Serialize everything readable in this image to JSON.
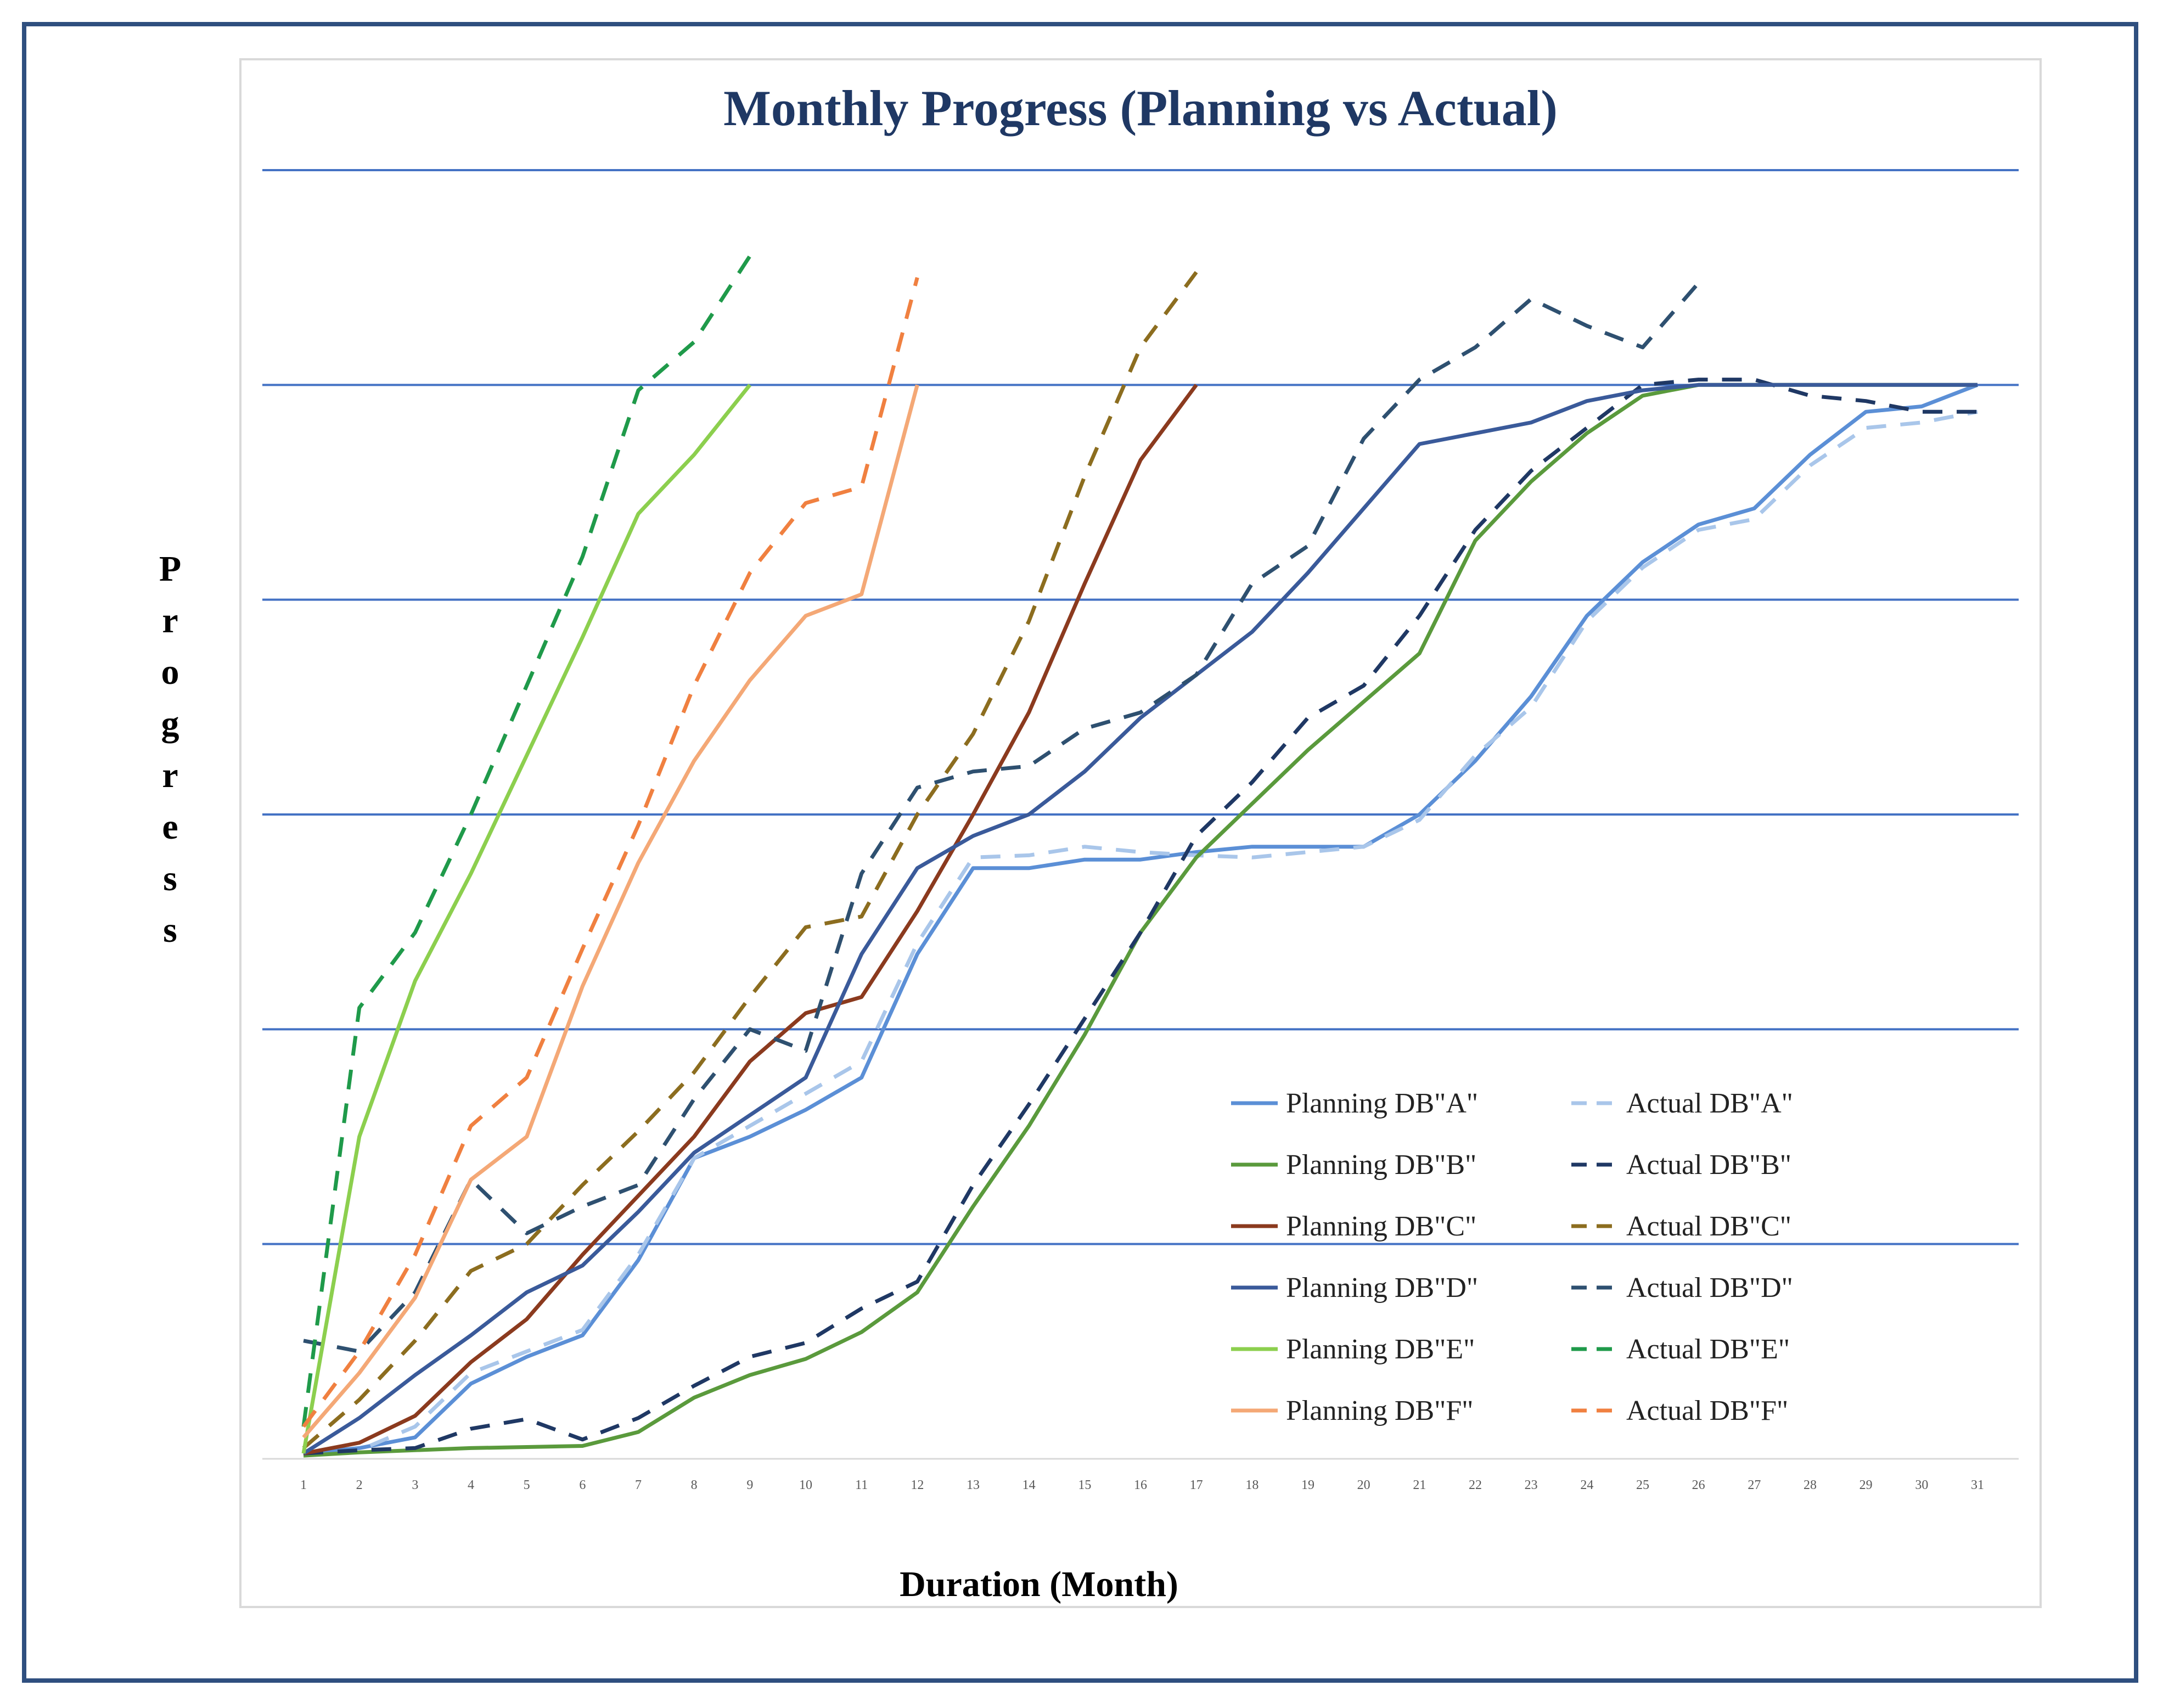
{
  "chart_data": {
    "type": "line",
    "title": "Monthly Progress (Planning vs Actual)",
    "xlabel": "Duration (Month)",
    "ylabel": "Progress",
    "xlim": [
      1,
      31
    ],
    "ylim": [
      0,
      1.2
    ],
    "gridlines_y": [
      0.2,
      0.4,
      0.6,
      0.8,
      1.0,
      1.2
    ],
    "grid": true,
    "legend_position": "bottom-right",
    "x_ticks": [
      "1",
      "2",
      "3",
      "4",
      "5",
      "6",
      "7",
      "8",
      "9",
      "10",
      "11",
      "12",
      "13",
      "14",
      "15",
      "16",
      "17",
      "18",
      "19",
      "20",
      "21",
      "22",
      "23",
      "24",
      "25",
      "26",
      "27",
      "28",
      "29",
      "30",
      "31"
    ],
    "series": [
      {
        "name": "Planning DB\"A\"",
        "style": "solid",
        "color": "#5b8fd6",
        "x": [
          1,
          2,
          3,
          4,
          5,
          6,
          7,
          8,
          9,
          10,
          11,
          12,
          13,
          14,
          15,
          16,
          17,
          18,
          19,
          20,
          21,
          22,
          23,
          24,
          25,
          26,
          27,
          28,
          29,
          30,
          31
        ],
        "values": [
          0.005,
          0.01,
          0.02,
          0.07,
          0.095,
          0.115,
          0.185,
          0.28,
          0.3,
          0.325,
          0.355,
          0.47,
          0.55,
          0.55,
          0.558,
          0.558,
          0.565,
          0.57,
          0.57,
          0.57,
          0.6,
          0.65,
          0.71,
          0.785,
          0.835,
          0.87,
          0.885,
          0.935,
          0.975,
          0.98,
          1.0
        ]
      },
      {
        "name": "Actual DB\"A\"",
        "style": "dashed",
        "color": "#a9c6ea",
        "x": [
          1,
          2,
          3,
          4,
          5,
          6,
          7,
          8,
          9,
          10,
          11,
          12,
          13,
          14,
          15,
          16,
          17,
          18,
          19,
          20,
          21,
          22,
          23,
          24,
          25,
          26,
          27,
          28,
          29,
          30,
          31
        ],
        "values": [
          0.003,
          0.008,
          0.03,
          0.08,
          0.1,
          0.12,
          0.19,
          0.28,
          0.31,
          0.34,
          0.37,
          0.48,
          0.56,
          0.562,
          0.57,
          0.565,
          0.562,
          0.56,
          0.565,
          0.57,
          0.595,
          0.655,
          0.7,
          0.78,
          0.83,
          0.865,
          0.875,
          0.925,
          0.96,
          0.965,
          0.975
        ]
      },
      {
        "name": "Planning DB\"B\"",
        "style": "solid",
        "color": "#5a9a3c",
        "x": [
          1,
          2,
          3,
          4,
          5,
          6,
          7,
          8,
          9,
          10,
          11,
          12,
          13,
          14,
          15,
          16,
          17,
          18,
          19,
          20,
          21,
          22,
          23,
          24,
          25,
          26,
          27,
          28,
          29,
          30,
          31
        ],
        "values": [
          0.003,
          0.006,
          0.008,
          0.01,
          0.011,
          0.012,
          0.025,
          0.057,
          0.078,
          0.093,
          0.118,
          0.155,
          0.235,
          0.31,
          0.395,
          0.49,
          0.56,
          0.61,
          0.66,
          0.705,
          0.75,
          0.855,
          0.91,
          0.955,
          0.99,
          1.0,
          1.0,
          1.0,
          1.0,
          1.0,
          1.0
        ]
      },
      {
        "name": "Actual DB\"B\"",
        "style": "dashed",
        "color": "#1f3864",
        "x": [
          1,
          2,
          3,
          4,
          5,
          6,
          7,
          8,
          9,
          10,
          11,
          12,
          13,
          14,
          15,
          16,
          17,
          18,
          19,
          20,
          21,
          22,
          23,
          24,
          25,
          26,
          27,
          28,
          29,
          30,
          31
        ],
        "values": [
          0.005,
          0.008,
          0.01,
          0.028,
          0.037,
          0.018,
          0.038,
          0.068,
          0.095,
          0.108,
          0.14,
          0.165,
          0.255,
          0.33,
          0.41,
          0.49,
          0.58,
          0.63,
          0.69,
          0.72,
          0.785,
          0.865,
          0.92,
          0.96,
          1.0,
          1.005,
          1.005,
          0.99,
          0.985,
          0.975,
          0.975
        ]
      },
      {
        "name": "Planning DB\"C\"",
        "style": "solid",
        "color": "#8b3a1e",
        "x": [
          1,
          2,
          3,
          4,
          5,
          6,
          7,
          8,
          9,
          10,
          11,
          12,
          13,
          14,
          15,
          16,
          17
        ],
        "values": [
          0.005,
          0.015,
          0.04,
          0.09,
          0.13,
          0.19,
          0.245,
          0.3,
          0.37,
          0.415,
          0.43,
          0.51,
          0.6,
          0.695,
          0.815,
          0.93,
          1.0
        ]
      },
      {
        "name": "Actual DB\"C\"",
        "style": "dashed",
        "color": "#8c6d1f",
        "x": [
          1,
          2,
          3,
          4,
          5,
          6,
          7,
          8,
          9,
          10,
          11,
          12,
          13,
          14,
          15,
          16,
          17
        ],
        "values": [
          0.01,
          0.055,
          0.11,
          0.175,
          0.2,
          0.255,
          0.305,
          0.36,
          0.43,
          0.495,
          0.505,
          0.6,
          0.675,
          0.78,
          0.915,
          1.035,
          1.105
        ]
      },
      {
        "name": "Planning  DB\"D\"",
        "style": "solid",
        "color": "#3a5a9a",
        "x": [
          1,
          2,
          3,
          4,
          5,
          6,
          7,
          8,
          9,
          10,
          11,
          12,
          13,
          14,
          15,
          16,
          17,
          18,
          19,
          20,
          21,
          22,
          23,
          24,
          25,
          26,
          27,
          28,
          29,
          30,
          31
        ],
        "values": [
          0.005,
          0.038,
          0.078,
          0.115,
          0.155,
          0.18,
          0.23,
          0.285,
          0.32,
          0.355,
          0.47,
          0.55,
          0.58,
          0.6,
          0.64,
          0.69,
          0.73,
          0.77,
          0.825,
          0.885,
          0.945,
          0.955,
          0.965,
          0.985,
          0.995,
          1.0,
          1.0,
          1.0,
          1.0,
          1.0,
          1.0
        ]
      },
      {
        "name": "Actual  DB\"D\"",
        "style": "dashed",
        "color": "#2e5070",
        "x": [
          1,
          2,
          3,
          4,
          5,
          6,
          7,
          8,
          9,
          10,
          11,
          12,
          13,
          14,
          15,
          16,
          17,
          18,
          19,
          20,
          21,
          22,
          23,
          24,
          25,
          26
        ],
        "values": [
          0.11,
          0.1,
          0.155,
          0.26,
          0.21,
          0.235,
          0.255,
          0.335,
          0.4,
          0.38,
          0.545,
          0.625,
          0.64,
          0.645,
          0.68,
          0.695,
          0.73,
          0.815,
          0.85,
          0.95,
          1.005,
          1.035,
          1.08,
          1.055,
          1.035,
          1.095
        ]
      },
      {
        "name": "Planning DB\"E\"",
        "style": "solid",
        "color": "#8ccf4e",
        "x": [
          1,
          2,
          3,
          4,
          5,
          6,
          7,
          8,
          9
        ],
        "values": [
          0.005,
          0.3,
          0.445,
          0.545,
          0.655,
          0.765,
          0.88,
          0.935,
          1.0
        ]
      },
      {
        "name": "Actual DB\"E\"",
        "style": "dashed",
        "color": "#1f9a4a",
        "x": [
          1,
          2,
          3,
          4,
          5,
          6,
          7,
          8,
          9
        ],
        "values": [
          0.03,
          0.42,
          0.49,
          0.6,
          0.72,
          0.84,
          0.995,
          1.04,
          1.12
        ]
      },
      {
        "name": "Planning  DB\"F\"",
        "style": "solid",
        "color": "#f4a876",
        "x": [
          1,
          2,
          3,
          4,
          5,
          6,
          7,
          8,
          9,
          10,
          11,
          12
        ],
        "values": [
          0.02,
          0.08,
          0.15,
          0.26,
          0.3,
          0.44,
          0.555,
          0.65,
          0.725,
          0.785,
          0.805,
          1.0
        ]
      },
      {
        "name": "Actual DB\"F\"",
        "style": "dashed",
        "color": "#f08040",
        "x": [
          1,
          2,
          3,
          4,
          5,
          6,
          7,
          8,
          9,
          10,
          11,
          12
        ],
        "values": [
          0.03,
          0.1,
          0.19,
          0.31,
          0.355,
          0.475,
          0.59,
          0.72,
          0.825,
          0.89,
          0.905,
          1.1
        ]
      }
    ]
  }
}
